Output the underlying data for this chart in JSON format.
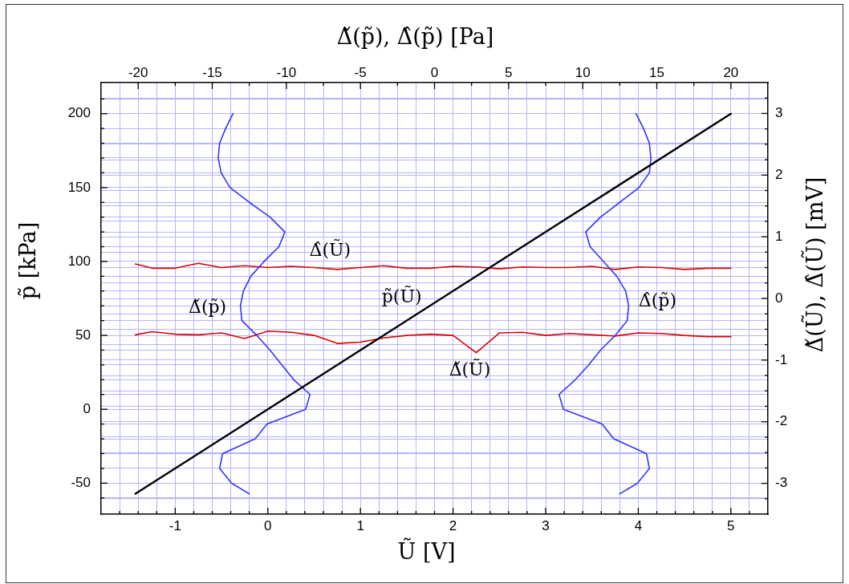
{
  "chart_data": {
    "type": "line",
    "xlabel": "Ũ [V]",
    "ylabel": "p̃ [kPa]",
    "x2label": "Δ̌(p̃), Δ̂(p̃) [Pa]",
    "y2label": "Δ̌(Ũ), Δ̂(Ũ) [mV]",
    "xlim": [
      -1.8,
      5.4
    ],
    "xticks": [
      {
        "value": -1.6,
        "label": null
      },
      {
        "value": -1.4,
        "label": null
      },
      {
        "value": -1.2,
        "label": null
      },
      -1,
      {
        "value": -0.8,
        "label": null
      },
      {
        "value": -0.6,
        "label": null
      },
      {
        "value": -0.4,
        "label": null
      },
      {
        "value": -0.2,
        "label": null
      },
      0,
      {
        "value": 0.2,
        "label": null
      },
      {
        "value": 0.4,
        "label": null
      },
      {
        "value": 0.6,
        "label": null
      },
      {
        "value": 0.8,
        "label": null
      },
      1,
      {
        "value": 1.2,
        "label": null
      },
      {
        "value": 1.4,
        "label": null
      },
      {
        "value": 1.6,
        "label": null
      },
      {
        "value": 1.8,
        "label": null
      },
      2,
      {
        "value": 2.2,
        "label": null
      },
      {
        "value": 2.4,
        "label": null
      },
      {
        "value": 2.6,
        "label": null
      },
      {
        "value": 2.8,
        "label": null
      },
      3,
      {
        "value": 3.2,
        "label": null
      },
      {
        "value": 3.4,
        "label": null
      },
      {
        "value": 3.6,
        "label": null
      },
      {
        "value": 3.8,
        "label": null
      },
      4,
      {
        "value": 4.2,
        "label": null
      },
      {
        "value": 4.4,
        "label": null
      },
      {
        "value": 4.6,
        "label": null
      },
      {
        "value": 4.8,
        "label": null
      },
      5,
      {
        "value": 5.2,
        "label": null
      }
    ],
    "ylim": [
      -71,
      221
    ],
    "yticks": [
      {
        "value": -60,
        "label": null
      },
      -50,
      {
        "value": -40,
        "label": null
      },
      {
        "value": -30,
        "label": null
      },
      {
        "value": -20,
        "label": null
      },
      {
        "value": -10,
        "label": null
      },
      0,
      {
        "value": 10,
        "label": null
      },
      {
        "value": 20,
        "label": null
      },
      {
        "value": 30,
        "label": null
      },
      {
        "value": 40,
        "label": null
      },
      50,
      {
        "value": 60,
        "label": null
      },
      {
        "value": 70,
        "label": null
      },
      {
        "value": 80,
        "label": null
      },
      {
        "value": 90,
        "label": null
      },
      100,
      {
        "value": 110,
        "label": null
      },
      {
        "value": 120,
        "label": null
      },
      {
        "value": 130,
        "label": null
      },
      {
        "value": 140,
        "label": null
      },
      150,
      {
        "value": 160,
        "label": null
      },
      {
        "value": 170,
        "label": null
      },
      {
        "value": 180,
        "label": null
      },
      {
        "value": 190,
        "label": null
      },
      200,
      {
        "value": 210,
        "label": null
      }
    ],
    "x2lim": [
      -22.5,
      22.5
    ],
    "x2ticks": [
      -20,
      {
        "value": -17.5,
        "label": null
      },
      -15,
      {
        "value": -12.5,
        "label": null
      },
      -10,
      {
        "value": -7.5,
        "label": null
      },
      -5,
      {
        "value": -2.5,
        "label": null
      },
      0,
      {
        "value": 2.5,
        "label": null
      },
      5,
      {
        "value": 7.5,
        "label": null
      },
      10,
      {
        "value": 12.5,
        "label": null
      },
      15,
      {
        "value": 17.5,
        "label": null
      },
      20
    ],
    "y2lim": [
      -3.5,
      3.5
    ],
    "y2ticks": [
      {
        "value": -3.25,
        "label": null
      },
      -3,
      {
        "value": -2.75,
        "label": null
      },
      {
        "value": -2.5,
        "label": null
      },
      {
        "value": -2.25,
        "label": null
      },
      -2,
      {
        "value": -1.75,
        "label": null
      },
      {
        "value": -1.5,
        "label": null
      },
      {
        "value": -1.25,
        "label": null
      },
      -1,
      {
        "value": -0.75,
        "label": null
      },
      {
        "value": -0.5,
        "label": null
      },
      {
        "value": -0.25,
        "label": null
      },
      0,
      {
        "value": 0.25,
        "label": null
      },
      {
        "value": 0.5,
        "label": null
      },
      {
        "value": 0.75,
        "label": null
      },
      1,
      {
        "value": 1.25,
        "label": null
      },
      {
        "value": 1.5,
        "label": null
      },
      {
        "value": 1.75,
        "label": null
      },
      2,
      {
        "value": 2.25,
        "label": null
      },
      {
        "value": 2.5,
        "label": null
      },
      {
        "value": 2.75,
        "label": null
      },
      3,
      {
        "value": 3.25,
        "label": null
      }
    ],
    "grid": true,
    "marker": "none",
    "series": [
      {
        "name": "p̃(Ũ)",
        "color": "#000000",
        "x": [
          -1.43,
          5
        ],
        "values": [
          -57.2,
          200
        ]
      },
      {
        "name": "Δ̌(p̃)",
        "color": "#3333ff",
        "axis": "x2",
        "x": [
          -13.6,
          -14.1,
          -14.5,
          -14.6,
          -14.4,
          -13.8,
          -12.5,
          -11.1,
          -10.1,
          -10.5,
          -11.5,
          -12.4,
          -12.9,
          -13.1,
          -13.0,
          -12.0,
          -11.1,
          -10.3,
          -9.5,
          -8.4,
          -8.7,
          -11.3,
          -12.1,
          -14.3,
          -14.5,
          -13.7,
          -12.5
        ],
        "values": [
          200,
          190,
          180,
          170,
          160,
          150,
          140,
          130,
          120,
          110,
          100,
          90,
          80,
          70,
          60,
          50,
          40,
          30,
          20,
          10,
          0,
          -10,
          -20,
          -30,
          -40,
          -50,
          -57.2
        ]
      },
      {
        "name": "Δ̂(p̃)",
        "color": "#3333ff",
        "axis": "x2",
        "x": [
          13.6,
          14.1,
          14.5,
          14.6,
          14.5,
          13.8,
          12.5,
          11.2,
          10.2,
          10.5,
          11.4,
          12.3,
          12.9,
          13.1,
          13.0,
          12.2,
          11.2,
          10.4,
          9.5,
          8.4,
          8.7,
          11.3,
          12.1,
          14.3,
          14.5,
          13.7,
          12.5
        ],
        "values": [
          200,
          190,
          180,
          170,
          160,
          150,
          140,
          130,
          120,
          110,
          100,
          90,
          80,
          70,
          60,
          50,
          40,
          30,
          20,
          10,
          0,
          -10,
          -20,
          -30,
          -40,
          -50,
          -57.2
        ]
      },
      {
        "name": "Δ̌(Ũ)",
        "color": "#dd0000",
        "axis": "y2",
        "x": [
          -1.43,
          -1.25,
          -1,
          -0.75,
          -0.5,
          -0.25,
          0,
          0.25,
          0.5,
          0.75,
          1,
          1.25,
          1.5,
          1.75,
          2,
          2.25,
          2.5,
          2.75,
          3,
          3.25,
          3.5,
          3.75,
          4,
          4.25,
          4.5,
          4.75,
          5
        ],
        "values": [
          -0.59,
          -0.54,
          -0.58,
          -0.59,
          -0.56,
          -0.65,
          -0.53,
          -0.55,
          -0.6,
          -0.73,
          -0.71,
          -0.64,
          -0.6,
          -0.58,
          -0.6,
          -0.88,
          -0.56,
          -0.55,
          -0.6,
          -0.57,
          -0.59,
          -0.61,
          -0.56,
          -0.57,
          -0.6,
          -0.62,
          -0.62
        ]
      },
      {
        "name": "Δ̂(Ũ)",
        "color": "#dd0000",
        "axis": "y2",
        "x": [
          -1.43,
          -1.25,
          -1,
          -0.75,
          -0.5,
          -0.25,
          0,
          0.25,
          0.5,
          0.75,
          1,
          1.25,
          1.5,
          1.75,
          2,
          2.25,
          2.5,
          2.75,
          3,
          3.25,
          3.5,
          3.75,
          4,
          4.25,
          4.5,
          4.75,
          5
        ],
        "values": [
          0.56,
          0.49,
          0.49,
          0.57,
          0.5,
          0.53,
          0.5,
          0.52,
          0.5,
          0.47,
          0.5,
          0.53,
          0.49,
          0.49,
          0.52,
          0.51,
          0.48,
          0.51,
          0.5,
          0.5,
          0.52,
          0.47,
          0.51,
          0.5,
          0.47,
          0.49,
          0.49
        ]
      }
    ]
  }
}
